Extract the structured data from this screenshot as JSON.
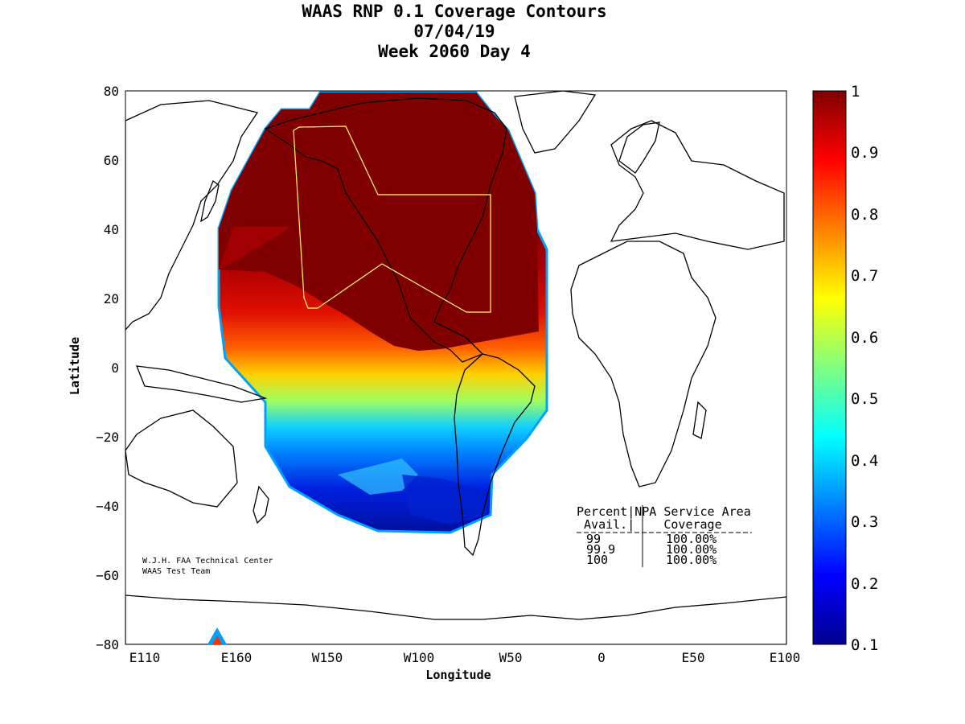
{
  "title": {
    "line1": "WAAS RNP 0.1 Coverage Contours",
    "line2": "07/04/19",
    "line3": "Week 2060 Day 4"
  },
  "axes": {
    "xlabel": "Longitude",
    "ylabel": "Latitude",
    "x_ticks": [
      "E110",
      "E160",
      "W150",
      "W100",
      "W50",
      "0",
      "E50",
      "E100"
    ],
    "y_ticks": [
      "80",
      "60",
      "40",
      "20",
      "0",
      "−20",
      "−40",
      "−60",
      "−80"
    ]
  },
  "colorbar": {
    "ticks": [
      "1",
      "0.9",
      "0.8",
      "0.7",
      "0.6",
      "0.5",
      "0.4",
      "0.3",
      "0.2",
      "0.1"
    ],
    "colormap": "jet",
    "range": [
      0.1,
      1
    ]
  },
  "coverage_table": {
    "header1": "Percent|NPA Service Area",
    "header2": " Avail.|    Coverage",
    "rows": [
      {
        "avail": "99",
        "coverage": "100.00%"
      },
      {
        "avail": "99.9",
        "coverage": "100.00%"
      },
      {
        "avail": "100",
        "coverage": "100.00%"
      }
    ]
  },
  "credit": {
    "line1": "W.J.H. FAA Technical Center",
    "line2": "WAAS Test Team"
  },
  "colors": {
    "dark_red": "#800000",
    "service_area_outline": "#ffff66",
    "coastline": "#000000"
  }
}
